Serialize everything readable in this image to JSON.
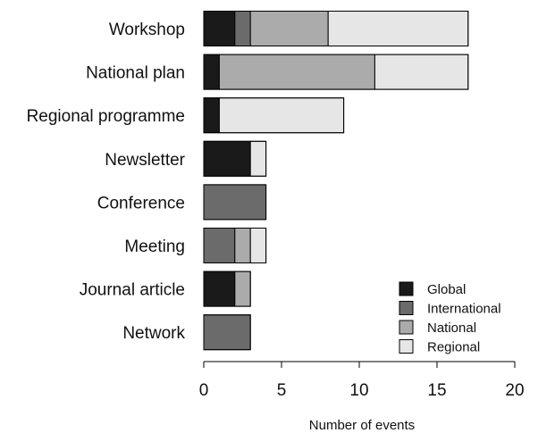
{
  "chart_data": {
    "type": "bar",
    "orientation": "horizontal",
    "stacked": true,
    "categories": [
      "Workshop",
      "National plan",
      "Regional programme",
      "Newsletter",
      "Conference",
      "Meeting",
      "Journal article",
      "Network"
    ],
    "series": [
      {
        "name": "Global",
        "color": "#1a1a1a",
        "values": [
          2,
          1,
          1,
          3,
          0,
          0,
          2,
          0
        ]
      },
      {
        "name": "International",
        "color": "#6b6b6b",
        "values": [
          1,
          0,
          0,
          0,
          4,
          2,
          0,
          3
        ]
      },
      {
        "name": "National",
        "color": "#ababab",
        "values": [
          5,
          10,
          0,
          0,
          0,
          1,
          1,
          0
        ]
      },
      {
        "name": "Regional",
        "color": "#e6e6e6",
        "values": [
          9,
          6,
          8,
          1,
          0,
          1,
          0,
          0
        ]
      }
    ],
    "xlabel": "Number of events",
    "ylabel": "",
    "title": "",
    "xlim": [
      0,
      20
    ],
    "xticks": [
      "0",
      "5",
      "10",
      "15",
      "20"
    ],
    "grid": false,
    "legend_position": "bottom-right",
    "bar_outline_color": "#000000"
  }
}
